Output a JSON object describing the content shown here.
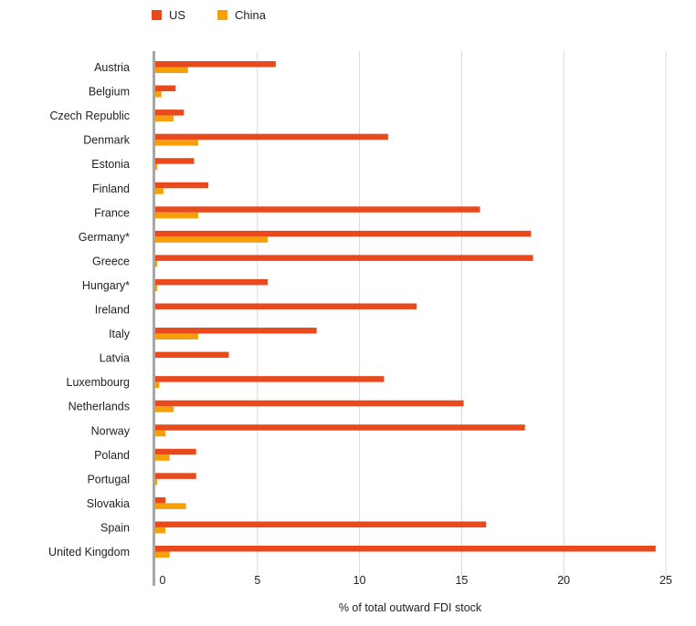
{
  "chart_data": {
    "type": "bar",
    "orientation": "horizontal",
    "categories": [
      "Austria",
      "Belgium",
      "Czech Republic",
      "Denmark",
      "Estonia",
      "Finland",
      "France",
      "Germany*",
      "Greece",
      "Hungary*",
      "Ireland",
      "Italy",
      "Latvia",
      "Luxembourg",
      "Netherlands",
      "Norway",
      "Poland",
      "Portugal",
      "Slovakia",
      "Spain",
      "United Kingdom"
    ],
    "series": [
      {
        "name": "US",
        "color": "#e84a1e",
        "values": [
          5.9,
          1.0,
          1.4,
          11.4,
          1.9,
          2.6,
          15.9,
          18.4,
          18.5,
          5.5,
          12.8,
          7.9,
          3.6,
          11.2,
          15.1,
          18.1,
          2.0,
          2.0,
          0.5,
          16.2,
          24.5
        ]
      },
      {
        "name": "China",
        "color": "#f5a00a",
        "values": [
          1.6,
          0.3,
          0.9,
          2.1,
          0.1,
          0.4,
          2.1,
          5.5,
          0.1,
          0.1,
          0.0,
          2.1,
          0.0,
          0.2,
          0.9,
          0.5,
          0.7,
          0.1,
          1.5,
          0.5,
          0.7
        ]
      }
    ],
    "xlim": [
      0,
      25
    ],
    "xticks": [
      0,
      5,
      10,
      15,
      20,
      25
    ],
    "xticklabels": [
      "0",
      "5",
      "10",
      "15",
      "20",
      "25"
    ],
    "xlabel": "% of total outward FDI stock",
    "ylabel": "",
    "title": "",
    "grid": true,
    "legend_position": "top-left"
  }
}
